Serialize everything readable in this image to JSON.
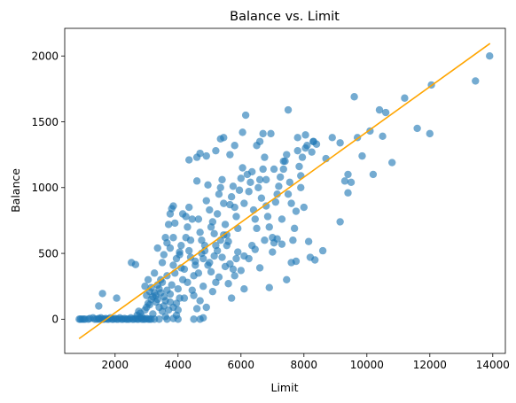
{
  "chart_data": {
    "type": "scatter",
    "title": "Balance vs. Limit",
    "xlabel": "Limit",
    "ylabel": "Balance",
    "xlim": [
      400,
      14400
    ],
    "ylim": [
      -260,
      2210
    ],
    "xticks": [
      2000,
      4000,
      6000,
      8000,
      10000,
      12000,
      14000
    ],
    "yticks": [
      0,
      500,
      1000,
      1500,
      2000
    ],
    "grid": false,
    "colors": {
      "points": "#1f77b4",
      "fit_line": "#ffa500"
    },
    "fit_line": {
      "x": [
        855,
        13913
      ],
      "y": [
        -148,
        2095
      ]
    },
    "series": [
      {
        "points": [
          [
            860,
            0
          ],
          [
            900,
            0
          ],
          [
            950,
            0
          ],
          [
            1000,
            0
          ],
          [
            1050,
            0
          ],
          [
            1150,
            0
          ],
          [
            1200,
            5
          ],
          [
            1300,
            10
          ],
          [
            1350,
            0
          ],
          [
            1420,
            0
          ],
          [
            1480,
            5
          ],
          [
            1500,
            0
          ],
          [
            1550,
            10
          ],
          [
            1600,
            0
          ],
          [
            1650,
            0
          ],
          [
            1700,
            5
          ],
          [
            1750,
            0
          ],
          [
            1800,
            0
          ],
          [
            1850,
            10
          ],
          [
            1900,
            0
          ],
          [
            1950,
            0
          ],
          [
            2000,
            5
          ],
          [
            2050,
            0
          ],
          [
            2100,
            0
          ],
          [
            2150,
            10
          ],
          [
            2200,
            0
          ],
          [
            2250,
            0
          ],
          [
            2300,
            5
          ],
          [
            2350,
            0
          ],
          [
            2400,
            0
          ],
          [
            2450,
            0
          ],
          [
            2500,
            10
          ],
          [
            2550,
            0
          ],
          [
            2600,
            0
          ],
          [
            2650,
            5
          ],
          [
            2700,
            0
          ],
          [
            2750,
            0
          ],
          [
            2800,
            10
          ],
          [
            2850,
            0
          ],
          [
            2900,
            0
          ],
          [
            2950,
            0
          ],
          [
            3000,
            5
          ],
          [
            3050,
            0
          ],
          [
            3100,
            0
          ],
          [
            3150,
            0
          ],
          [
            3250,
            0
          ],
          [
            3400,
            0
          ],
          [
            3650,
            0
          ],
          [
            3850,
            5
          ],
          [
            4000,
            0
          ],
          [
            4500,
            0
          ],
          [
            4700,
            0
          ],
          [
            4800,
            10
          ],
          [
            1480,
            100
          ],
          [
            1600,
            195
          ],
          [
            2050,
            160
          ],
          [
            2520,
            430
          ],
          [
            2650,
            415
          ],
          [
            2700,
            30
          ],
          [
            2750,
            60
          ],
          [
            2800,
            45
          ],
          [
            2850,
            20
          ],
          [
            2950,
            70
          ],
          [
            3000,
            90
          ],
          [
            3050,
            120
          ],
          [
            3100,
            110
          ],
          [
            3150,
            150
          ],
          [
            3200,
            40
          ],
          [
            3250,
            200
          ],
          [
            3300,
            180
          ],
          [
            3350,
            260
          ],
          [
            3400,
            230
          ],
          [
            3450,
            300
          ],
          [
            3500,
            280
          ],
          [
            3550,
            100
          ],
          [
            3600,
            140
          ],
          [
            3650,
            330
          ],
          [
            3700,
            70
          ],
          [
            3750,
            190
          ],
          [
            3800,
            260
          ],
          [
            3850,
            410
          ],
          [
            3900,
            350
          ],
          [
            3950,
            120
          ],
          [
            4000,
            70
          ],
          [
            2950,
            250
          ],
          [
            3050,
            300
          ],
          [
            3150,
            240
          ],
          [
            3250,
            350
          ],
          [
            3350,
            150
          ],
          [
            3450,
            200
          ],
          [
            3550,
            170
          ],
          [
            3650,
            220
          ],
          [
            3750,
            130
          ],
          [
            3850,
            90
          ],
          [
            3950,
            30
          ],
          [
            4050,
            160
          ],
          [
            3000,
            180
          ],
          [
            3100,
            210
          ],
          [
            3200,
            170
          ],
          [
            3300,
            130
          ],
          [
            3400,
            90
          ],
          [
            3500,
            60
          ],
          [
            3600,
            20
          ],
          [
            3350,
            540
          ],
          [
            3500,
            430
          ],
          [
            3600,
            620
          ],
          [
            3700,
            720
          ],
          [
            3750,
            800
          ],
          [
            3850,
            860
          ],
          [
            3800,
            840
          ],
          [
            3950,
            460
          ],
          [
            4050,
            490
          ],
          [
            4100,
            560
          ],
          [
            4150,
            300
          ],
          [
            4200,
            380
          ],
          [
            4250,
            620
          ],
          [
            4300,
            700
          ],
          [
            4350,
            520
          ],
          [
            4400,
            470
          ],
          [
            4450,
            220
          ],
          [
            4500,
            330
          ],
          [
            4550,
            410
          ],
          [
            4600,
            1050
          ],
          [
            4650,
            760
          ],
          [
            4700,
            660
          ],
          [
            4750,
            600
          ],
          [
            4800,
            460
          ],
          [
            4850,
            520
          ],
          [
            4900,
            900
          ],
          [
            4950,
            1020
          ],
          [
            5000,
            830
          ],
          [
            5050,
            700
          ],
          [
            5100,
            740
          ],
          [
            5150,
            650
          ],
          [
            5200,
            560
          ],
          [
            5250,
            800
          ],
          [
            5300,
            950
          ],
          [
            5350,
            1000
          ],
          [
            5400,
            1060
          ],
          [
            5450,
            880
          ],
          [
            5500,
            720
          ],
          [
            5550,
            640
          ],
          [
            5600,
            590
          ],
          [
            5650,
            870
          ],
          [
            5700,
            930
          ],
          [
            5750,
            1010
          ],
          [
            5800,
            850
          ],
          [
            5850,
            780
          ],
          [
            5900,
            690
          ],
          [
            4350,
            1210
          ],
          [
            4600,
            1230
          ],
          [
            4700,
            1260
          ],
          [
            4900,
            1240
          ],
          [
            5200,
            1280
          ],
          [
            5350,
            1370
          ],
          [
            5450,
            1380
          ],
          [
            5650,
            1250
          ],
          [
            5800,
            1320
          ],
          [
            6050,
            1420
          ],
          [
            6150,
            1550
          ],
          [
            4000,
            230
          ],
          [
            4100,
            390
          ],
          [
            4200,
            160
          ],
          [
            4300,
            280
          ],
          [
            4400,
            600
          ],
          [
            4500,
            180
          ],
          [
            4600,
            80
          ],
          [
            4700,
            140
          ],
          [
            4800,
            250
          ],
          [
            4900,
            90
          ],
          [
            5000,
            430
          ],
          [
            5100,
            210
          ],
          [
            5200,
            280
          ],
          [
            5300,
            320
          ],
          [
            5400,
            470
          ],
          [
            5500,
            400
          ],
          [
            5600,
            270
          ],
          [
            5700,
            160
          ],
          [
            5800,
            330
          ],
          [
            5900,
            510
          ],
          [
            6000,
            370
          ],
          [
            6100,
            230
          ],
          [
            5950,
            980
          ],
          [
            6000,
            1070
          ],
          [
            6050,
            1150
          ],
          [
            6100,
            880
          ],
          [
            6200,
            1100
          ],
          [
            6250,
            970
          ],
          [
            6300,
            1040
          ],
          [
            6350,
            1120
          ],
          [
            6400,
            830
          ],
          [
            6450,
            760
          ],
          [
            6500,
            690
          ],
          [
            6550,
            1000
          ],
          [
            6600,
            1060
          ],
          [
            6650,
            920
          ],
          [
            6700,
            1140
          ],
          [
            6750,
            1230
          ],
          [
            6800,
            860
          ],
          [
            6850,
            780
          ],
          [
            6900,
            700
          ],
          [
            6950,
            1410
          ],
          [
            7000,
            620
          ],
          [
            7050,
            580
          ],
          [
            7100,
            890
          ],
          [
            7150,
            950
          ],
          [
            7200,
            1010
          ],
          [
            7250,
            1080
          ],
          [
            7300,
            760
          ],
          [
            7350,
            1140
          ],
          [
            7400,
            1200
          ],
          [
            7450,
            1250
          ],
          [
            7500,
            950
          ],
          [
            7550,
            1040
          ],
          [
            7600,
            880
          ],
          [
            7650,
            600
          ],
          [
            7700,
            690
          ],
          [
            7750,
            820
          ],
          [
            7800,
            1280
          ],
          [
            7850,
            1160
          ],
          [
            7900,
            1000
          ],
          [
            7950,
            1230
          ],
          [
            8000,
            850
          ],
          [
            8050,
            1300
          ],
          [
            8100,
            1320
          ],
          [
            8150,
            590
          ],
          [
            8200,
            470
          ],
          [
            8250,
            1270
          ],
          [
            8300,
            1350
          ],
          [
            6500,
            1320
          ],
          [
            6600,
            1350
          ],
          [
            6700,
            1410
          ],
          [
            6800,
            1060
          ],
          [
            7050,
            1140
          ],
          [
            7350,
            1200
          ],
          [
            7500,
            1590
          ],
          [
            7800,
            1380
          ],
          [
            7900,
            1090
          ],
          [
            8050,
            1400
          ],
          [
            8300,
            1350
          ],
          [
            8400,
            1330
          ],
          [
            8700,
            1220
          ],
          [
            8900,
            1380
          ],
          [
            9150,
            1340
          ],
          [
            9300,
            1050
          ],
          [
            9400,
            1100
          ],
          [
            9600,
            1690
          ],
          [
            9700,
            1380
          ],
          [
            9850,
            1240
          ],
          [
            10100,
            1430
          ],
          [
            10200,
            1100
          ],
          [
            10400,
            1590
          ],
          [
            10500,
            1390
          ],
          [
            10600,
            1570
          ],
          [
            10800,
            1190
          ],
          [
            11200,
            1680
          ],
          [
            11600,
            1450
          ],
          [
            12000,
            1410
          ],
          [
            12050,
            1780
          ],
          [
            13450,
            1810
          ],
          [
            13900,
            2000
          ],
          [
            6100,
            480
          ],
          [
            6250,
            460
          ],
          [
            6350,
            560
          ],
          [
            6450,
            530
          ],
          [
            6600,
            390
          ],
          [
            6750,
            600
          ],
          [
            6900,
            240
          ],
          [
            7000,
            510
          ],
          [
            7150,
            610
          ],
          [
            7300,
            570
          ],
          [
            7450,
            300
          ],
          [
            7600,
            430
          ],
          [
            7750,
            440
          ],
          [
            8350,
            450
          ],
          [
            8600,
            520
          ],
          [
            9150,
            740
          ],
          [
            9400,
            960
          ],
          [
            9500,
            1040
          ],
          [
            3550,
            490
          ],
          [
            3650,
            580
          ],
          [
            3750,
            540
          ],
          [
            3850,
            620
          ],
          [
            3900,
            730
          ],
          [
            4050,
            510
          ],
          [
            4150,
            800
          ],
          [
            4250,
            780
          ],
          [
            4350,
            850
          ],
          [
            4450,
            760
          ],
          [
            4550,
            440
          ],
          [
            4650,
            350
          ],
          [
            4750,
            500
          ],
          [
            4850,
            560
          ],
          [
            4950,
            410
          ],
          [
            5050,
            360
          ],
          [
            5150,
            480
          ],
          [
            5250,
            520
          ],
          [
            5350,
            600
          ],
          [
            5450,
            640
          ],
          [
            5550,
            560
          ],
          [
            5650,
            420
          ],
          [
            5750,
            380
          ],
          [
            5850,
            460
          ]
        ]
      }
    ]
  }
}
